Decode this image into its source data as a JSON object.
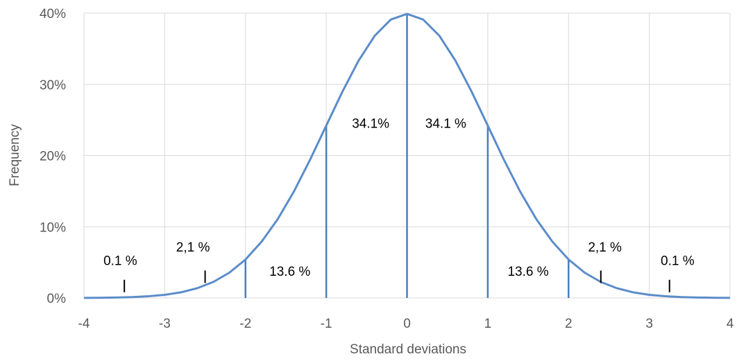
{
  "chart_data": {
    "type": "line",
    "xlabel": "Standard deviations",
    "ylabel": "Frequency",
    "xlim": [
      -4,
      4
    ],
    "ylim": [
      0,
      40
    ],
    "x_ticks": [
      -4,
      -3,
      -2,
      -1,
      0,
      1,
      2,
      3,
      4
    ],
    "y_ticks": [
      0,
      10,
      20,
      30,
      40
    ],
    "x_tick_labels": [
      "-4",
      "-3",
      "-2",
      "-1",
      "0",
      "1",
      "2",
      "3",
      "4"
    ],
    "y_tick_labels": [
      "0%",
      "10%",
      "20%",
      "30%",
      "40%"
    ],
    "grid": true,
    "series": [
      {
        "x": [
          -4.0,
          -3.8,
          -3.6,
          -3.4,
          -3.2,
          -3.0,
          -2.8,
          -2.6,
          -2.4,
          -2.2,
          -2.0,
          -1.8,
          -1.6,
          -1.4,
          -1.2,
          -1.0,
          -0.8,
          -0.6,
          -0.4,
          -0.2,
          0.0,
          0.2,
          0.4,
          0.6,
          0.8,
          1.0,
          1.2,
          1.4,
          1.6,
          1.8,
          2.0,
          2.2,
          2.4,
          2.6,
          2.8,
          3.0,
          3.2,
          3.4,
          3.6,
          3.8,
          4.0
        ],
        "y": [
          0.01,
          0.03,
          0.06,
          0.12,
          0.24,
          0.44,
          0.79,
          1.36,
          2.24,
          3.55,
          5.4,
          7.9,
          11.09,
          14.97,
          19.42,
          24.2,
          28.97,
          33.32,
          36.83,
          39.1,
          39.89,
          39.1,
          36.83,
          33.32,
          28.97,
          24.2,
          19.42,
          14.97,
          11.09,
          7.9,
          5.4,
          3.55,
          2.24,
          1.36,
          0.79,
          0.44,
          0.24,
          0.12,
          0.06,
          0.03,
          0.01
        ]
      }
    ],
    "vertical_lines": [
      {
        "x": -2,
        "y": 5.4
      },
      {
        "x": -1,
        "y": 24.2
      },
      {
        "x": 0,
        "y": 39.89
      },
      {
        "x": 1,
        "y": 24.2
      },
      {
        "x": 2,
        "y": 5.4
      }
    ],
    "annotations": [
      {
        "text": "0.1 %",
        "x": -3.55,
        "y": 4.6
      },
      {
        "text": "2,1 %",
        "x": -2.65,
        "y": 6.5
      },
      {
        "text": "13.6 %",
        "x": -1.45,
        "y": 3.1
      },
      {
        "text": "34.1%",
        "x": -0.45,
        "y": 23.9
      },
      {
        "text": "34.1 %",
        "x": 0.48,
        "y": 23.9
      },
      {
        "text": "13.6 %",
        "x": 1.5,
        "y": 3.1
      },
      {
        "text": "2,1 %",
        "x": 2.45,
        "y": 6.5
      },
      {
        "text": "0.1 %",
        "x": 3.35,
        "y": 4.6
      }
    ],
    "tick_markers": [
      {
        "x": -3.5,
        "y": 0.8
      },
      {
        "x": -2.5,
        "y": 2.1
      },
      {
        "x": 2.4,
        "y": 2.1
      },
      {
        "x": 3.25,
        "y": 0.8
      }
    ],
    "colors": {
      "curve": "#5b8cc9",
      "lines": "#4a7ebb",
      "grid": "#d9d9d9",
      "text": "#595959"
    }
  }
}
